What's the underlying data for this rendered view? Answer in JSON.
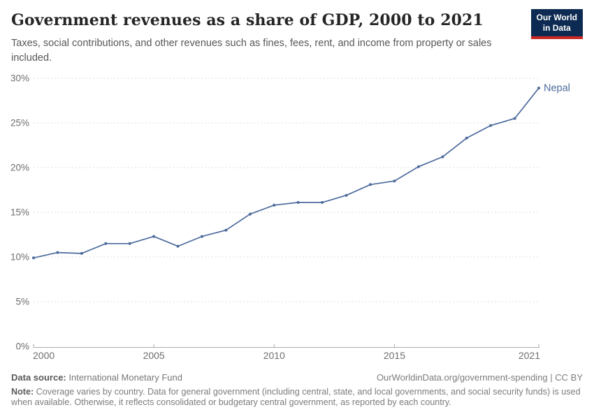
{
  "header": {
    "title": "Government revenues as a share of GDP, 2000 to 2021",
    "subtitle": "Taxes, social contributions, and other revenues such as fines, fees, rent, and income from property or sales included.",
    "logo_line1": "Our World",
    "logo_line2": "in Data"
  },
  "chart_data": {
    "type": "line",
    "title": "Government revenues as a share of GDP, 2000 to 2021",
    "x": [
      2000,
      2001,
      2002,
      2003,
      2004,
      2005,
      2006,
      2007,
      2008,
      2009,
      2010,
      2011,
      2012,
      2013,
      2014,
      2015,
      2016,
      2017,
      2018,
      2019,
      2020,
      2021
    ],
    "series": [
      {
        "name": "Nepal",
        "values": [
          9.9,
          10.5,
          10.4,
          11.5,
          11.5,
          12.3,
          11.2,
          12.3,
          13.0,
          14.8,
          15.8,
          16.1,
          16.1,
          16.9,
          18.1,
          18.5,
          20.1,
          21.2,
          23.3,
          24.7,
          25.5,
          28.9
        ],
        "color": "#4C6A9C"
      }
    ],
    "xlabel": "",
    "ylabel": "",
    "xlim": [
      2000,
      2021
    ],
    "ylim": [
      0,
      30
    ],
    "yticks": [
      0,
      5,
      10,
      15,
      20,
      25,
      30
    ],
    "ytick_suffix": "%",
    "xticks": [
      2000,
      2005,
      2010,
      2015,
      2021
    ],
    "grid": "horizontal-dashed",
    "legend_position": "end-of-line-label"
  },
  "footer": {
    "source_label": "Data source:",
    "source_value": " International Monetary Fund",
    "link": "OurWorldinData.org/government-spending | CC BY",
    "note_label": "Note:",
    "note_text": " Coverage varies by country. Data for general government (including central, state, and local governments, and social security funds) is used when available. Otherwise, it reflects consolidated or budgetary central government, as reported by each country."
  },
  "colors": {
    "series_line": "#4C6A9C",
    "grid": "#dcdcdc",
    "axis": "#adadad",
    "tick_label": "#6e6e6e",
    "title": "#252525",
    "subtitle": "#575757",
    "logo_bg": "#0d2b52",
    "logo_stripe": "#cb2824"
  }
}
